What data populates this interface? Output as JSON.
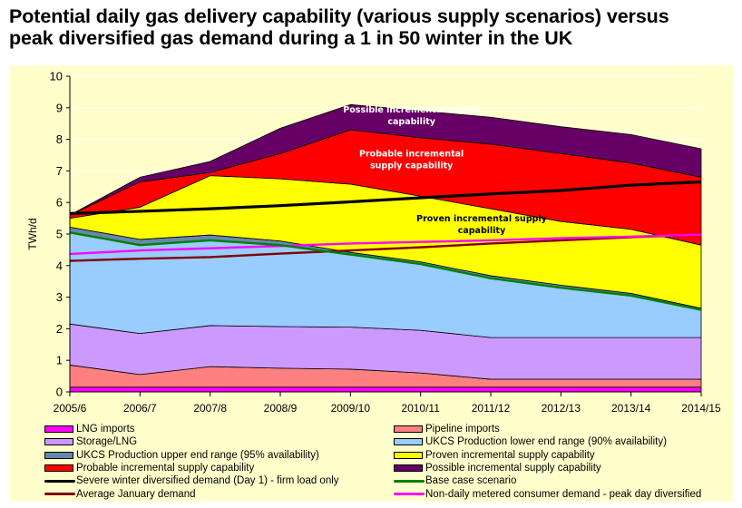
{
  "title_line1": "Potential daily gas delivery capability (various supply scenarios) versus",
  "title_line2": "peak diversified gas demand during a 1 in 50 winter in the UK",
  "chart_data": {
    "type": "area",
    "stacked": true,
    "title": "Potential daily gas delivery capability (various supply scenarios) versus peak diversified gas demand during a 1 in 50 winter in the UK",
    "xlabel": "",
    "ylabel": "TWh/d",
    "ylim": [
      0,
      10
    ],
    "yticks": [
      "0",
      "1",
      "2",
      "3",
      "4",
      "5",
      "6",
      "7",
      "8",
      "9",
      "10"
    ],
    "grid": true,
    "legend_position": "bottom",
    "categories": [
      "2005/6",
      "2006/7",
      "2007/8",
      "2008/9",
      "2009/10",
      "2010/11",
      "2011/12",
      "2012/13",
      "2013/14",
      "2014/15"
    ],
    "area_series": [
      {
        "name": "LNG imports",
        "color": "#ff00ff",
        "cumulative_top": [
          0.15,
          0.15,
          0.15,
          0.15,
          0.15,
          0.15,
          0.15,
          0.15,
          0.15,
          0.15
        ]
      },
      {
        "name": "Pipeline imports",
        "color": "#ff8080",
        "cumulative_top": [
          0.85,
          0.55,
          0.8,
          0.75,
          0.72,
          0.6,
          0.4,
          0.4,
          0.4,
          0.4
        ]
      },
      {
        "name": "Storage/LNG",
        "color": "#cc99ff",
        "cumulative_top": [
          2.15,
          1.85,
          2.1,
          2.07,
          2.05,
          1.95,
          1.72,
          1.72,
          1.72,
          1.72
        ]
      },
      {
        "name": "UKCS Production lower end range (90% availability)",
        "color": "#99ccff",
        "cumulative_top": [
          5.05,
          4.65,
          4.8,
          4.65,
          4.35,
          4.05,
          3.6,
          3.3,
          3.05,
          2.6
        ]
      },
      {
        "name": "UKCS Production upper end range (95% availability)",
        "color": "#6688aa",
        "cumulative_top": [
          5.22,
          4.83,
          4.97,
          4.78,
          4.42,
          4.12,
          3.68,
          3.38,
          3.12,
          2.65
        ]
      },
      {
        "name": "Proven incremental supply capability",
        "color": "#ffff00",
        "cumulative_top": [
          5.5,
          5.85,
          6.85,
          6.75,
          6.58,
          6.2,
          5.8,
          5.4,
          5.15,
          4.65
        ]
      },
      {
        "name": "Probable incremental supply capability",
        "color": "#ff0000",
        "cumulative_top": [
          5.6,
          6.65,
          6.95,
          7.55,
          8.3,
          8.05,
          7.85,
          7.55,
          7.25,
          6.8
        ]
      },
      {
        "name": "Possible incremental supply capability",
        "color": "#660066",
        "cumulative_top": [
          5.6,
          6.8,
          7.3,
          8.35,
          9.1,
          8.9,
          8.7,
          8.4,
          8.15,
          7.7
        ]
      }
    ],
    "line_series": [
      {
        "name": "Severe winter diversified demand (Day 1) - firm load only",
        "color": "#000000",
        "values": [
          5.65,
          5.72,
          5.8,
          5.9,
          6.02,
          6.15,
          6.27,
          6.38,
          6.55,
          6.65
        ]
      },
      {
        "name": "Base case scenario",
        "color": "#008000",
        "values": [
          5.05,
          4.65,
          4.8,
          4.65,
          4.35,
          4.05,
          3.6,
          3.3,
          3.05,
          2.6
        ]
      },
      {
        "name": "Average January demand",
        "color": "#800000",
        "values": [
          4.15,
          4.22,
          4.27,
          4.38,
          4.48,
          4.58,
          4.7,
          4.8,
          4.9,
          4.98
        ]
      },
      {
        "name": "Non-daily metered consumer demand - peak day diversified",
        "color": "#ff00ff",
        "values": [
          4.37,
          4.48,
          4.55,
          4.62,
          4.7,
          4.75,
          4.8,
          4.87,
          4.92,
          4.98
        ]
      }
    ],
    "annotations": [
      {
        "text_line1": "Possible incremental supply",
        "text_line2": "capability",
        "color": "#ffffff",
        "at_category": "2010/11",
        "at_value": 8.85
      },
      {
        "text_line1": "Probable incremental",
        "text_line2": "supply capability",
        "color": "#ffffff",
        "at_category": "2010/11",
        "at_value": 7.45
      },
      {
        "text_line1": "Proven incremental supply",
        "text_line2": "capability",
        "color": "#000000",
        "at_category": "2011/12",
        "at_value": 5.4
      }
    ]
  },
  "legend": {
    "left": [
      {
        "label": "LNG imports",
        "kind": "box",
        "color": "#ff00ff"
      },
      {
        "label": "Storage/LNG",
        "kind": "box",
        "color": "#cc99ff"
      },
      {
        "label": "UKCS Production upper end range (95% availability)",
        "kind": "box",
        "color": "#6688aa"
      },
      {
        "label": "Probable incremental supply capability",
        "kind": "box",
        "color": "#ff0000"
      },
      {
        "label": "Severe winter diversified demand (Day 1) - firm load only",
        "kind": "line",
        "color": "#000000"
      },
      {
        "label": "Average January demand",
        "kind": "line",
        "color": "#800000"
      }
    ],
    "right": [
      {
        "label": "Pipeline imports",
        "kind": "box",
        "color": "#ff8080"
      },
      {
        "label": "UKCS Production lower end range (90% availability)",
        "kind": "box",
        "color": "#99ccff"
      },
      {
        "label": "Proven incremental supply capability",
        "kind": "box",
        "color": "#ffff00"
      },
      {
        "label": "Possible incremental supply capability",
        "kind": "box",
        "color": "#660066"
      },
      {
        "label": "Base case scenario",
        "kind": "line",
        "color": "#008000"
      },
      {
        "label": "Non-daily metered consumer demand - peak day diversified",
        "kind": "line",
        "color": "#ff00ff"
      }
    ]
  }
}
